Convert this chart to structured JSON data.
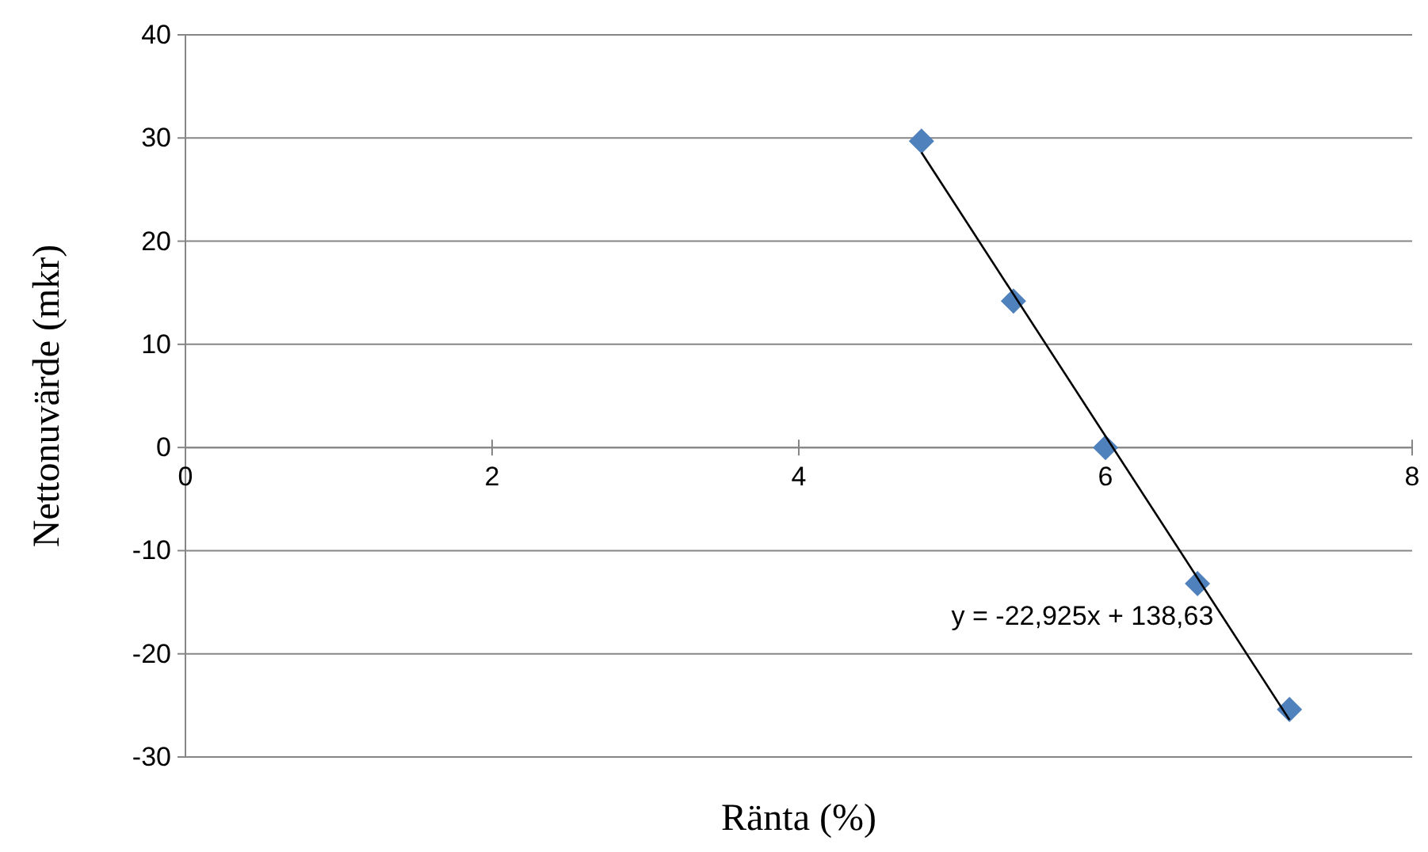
{
  "chart_data": {
    "type": "scatter",
    "xlabel": "Ränta (%)",
    "ylabel": "Nettonuvärde (mkr)",
    "xlim": [
      0,
      8
    ],
    "xticks": [
      0,
      2,
      4,
      6,
      8
    ],
    "ylim": [
      -30,
      40
    ],
    "yticks": [
      -30,
      -20,
      -10,
      0,
      10,
      20,
      30,
      40
    ],
    "grid": "y",
    "marker": "diamond",
    "series": [
      {
        "color": "#4f81bd",
        "x": [
          4.8,
          5.4,
          6.0,
          6.6,
          7.2
        ],
        "values": [
          29.7,
          14.2,
          0,
          -13.2,
          -25.4
        ]
      },
      {
        "type": "line",
        "color": "#000000",
        "marker": "none",
        "x": [
          4.8,
          7.2
        ],
        "values": [
          28.6,
          -26.4
        ]
      }
    ],
    "annotations": [
      "y = -22,925x + 138,63"
    ]
  }
}
